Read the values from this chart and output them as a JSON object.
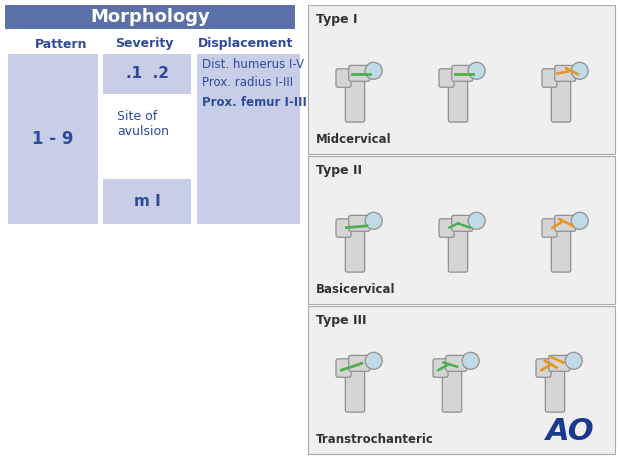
{
  "title": "Morphology",
  "title_bg": "#5b6fa8",
  "title_color": "#ffffff",
  "header_color": "#2e4b9a",
  "cell_bg_light": "#c8cee8",
  "bg_color": "#ffffff",
  "col_headers": [
    "Pattern",
    "Severity",
    "Displacement"
  ],
  "pattern_val": "1 - 9",
  "severity_val1": ".1  .2",
  "severity_val2": "Site of\navulsion",
  "severity_val3": "m I",
  "displacement_line1": "Dist. humerus I-V",
  "displacement_line2": "Prox. radius I-III",
  "displacement_line3": "Prox. femur I-III",
  "types": [
    "Type I",
    "Type II",
    "Type III"
  ],
  "type_labels": [
    "Midcervical",
    "Basicervical",
    "Transtrochanteric"
  ],
  "ao_logo_color": "#1a3a8f",
  "fracture_line_green": "#4cae4c",
  "fracture_line_orange": "#e8931a",
  "bone_face": "#d5d5d5",
  "bone_edge": "#909090",
  "head_face": "#c0dae6",
  "box_face": "#efefef",
  "box_edge": "#aaaaaa"
}
